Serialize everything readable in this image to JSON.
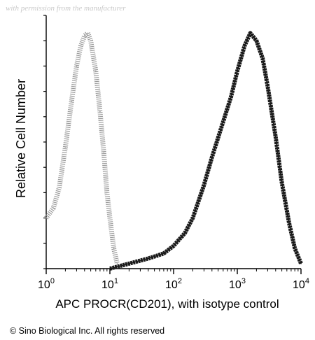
{
  "watermark": "with permission from the manufacturer",
  "copyright": "© Sino Biological Inc. All rights reserved",
  "chart_data": {
    "type": "area",
    "xlabel": "APC  PROCR(CD201), with isotype control",
    "ylabel": "Relative Cell Number",
    "xscale": "log",
    "xlim": [
      1,
      10000
    ],
    "ylim": [
      0,
      100
    ],
    "x_ticks": [
      {
        "value": 1,
        "base": "10",
        "exp": "0"
      },
      {
        "value": 10,
        "base": "10",
        "exp": "1"
      },
      {
        "value": 100,
        "base": "10",
        "exp": "2"
      },
      {
        "value": 1000,
        "base": "10",
        "exp": "3"
      },
      {
        "value": 10000,
        "base": "10",
        "exp": "4"
      }
    ],
    "grid": false,
    "series": [
      {
        "color": "#9a9a9a",
        "style": "dotted",
        "x": [
          1.0,
          1.3,
          1.6,
          2.0,
          2.5,
          3.0,
          3.5,
          4.0,
          4.5,
          5.0,
          6.0,
          7.0,
          8.0,
          9.0,
          10.0,
          11.5,
          13.0
        ],
        "y": [
          20,
          24,
          32,
          48,
          66,
          80,
          88,
          92,
          93,
          90,
          78,
          62,
          46,
          30,
          20,
          8,
          2
        ]
      },
      {
        "color": "#1a1a1a",
        "style": "solid",
        "x": [
          10,
          20,
          40,
          70,
          100,
          150,
          200,
          300,
          400,
          600,
          800,
          1000,
          1300,
          1600,
          2000,
          2500,
          3000,
          4000,
          5000,
          6500,
          8000,
          10000
        ],
        "y": [
          0,
          2,
          4,
          6,
          9,
          14,
          20,
          33,
          44,
          58,
          68,
          78,
          88,
          93,
          90,
          83,
          72,
          52,
          34,
          18,
          8,
          2
        ]
      }
    ]
  }
}
